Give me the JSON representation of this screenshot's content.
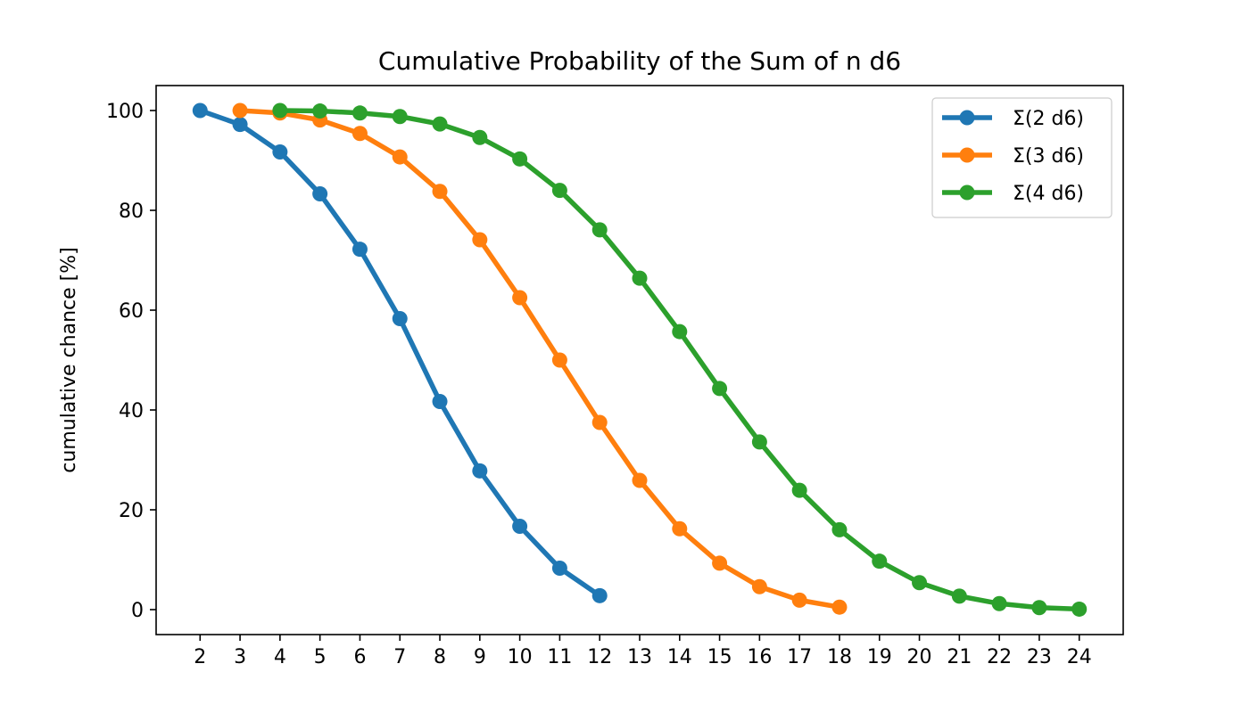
{
  "chart_data": {
    "type": "line",
    "title": "Cumulative Probability of the Sum of n d6",
    "xlabel": "",
    "ylabel": "cumulative chance [%]",
    "xlim": [
      0.9,
      25.1
    ],
    "ylim": [
      -5,
      105
    ],
    "x_ticks": [
      2,
      3,
      4,
      5,
      6,
      7,
      8,
      9,
      10,
      11,
      12,
      13,
      14,
      15,
      16,
      17,
      18,
      19,
      20,
      21,
      22,
      23,
      24
    ],
    "y_ticks": [
      0,
      20,
      40,
      60,
      80,
      100
    ],
    "grid": false,
    "legend_position": "top-right",
    "series": [
      {
        "name": "Σ(2 d6)",
        "color": "#1f77b4",
        "x": [
          2,
          3,
          4,
          5,
          6,
          7,
          8,
          9,
          10,
          11,
          12
        ],
        "y": [
          100,
          97.2,
          91.7,
          83.3,
          72.2,
          58.3,
          41.7,
          27.8,
          16.7,
          8.3,
          2.8
        ]
      },
      {
        "name": "Σ(3 d6)",
        "color": "#ff7f0e",
        "x": [
          3,
          4,
          5,
          6,
          7,
          8,
          9,
          10,
          11,
          12,
          13,
          14,
          15,
          16,
          17,
          18
        ],
        "y": [
          100,
          99.5,
          98.1,
          95.4,
          90.7,
          83.8,
          74.1,
          62.5,
          50.0,
          37.5,
          25.9,
          16.2,
          9.3,
          4.6,
          1.9,
          0.5
        ]
      },
      {
        "name": "Σ(4 d6)",
        "color": "#2ca02c",
        "x": [
          4,
          5,
          6,
          7,
          8,
          9,
          10,
          11,
          12,
          13,
          14,
          15,
          16,
          17,
          18,
          19,
          20,
          21,
          22,
          23,
          24
        ],
        "y": [
          100,
          99.9,
          99.5,
          98.8,
          97.3,
          94.6,
          90.3,
          84.0,
          76.1,
          66.4,
          55.7,
          44.3,
          33.6,
          23.9,
          16.0,
          9.7,
          5.4,
          2.7,
          1.2,
          0.4,
          0.1
        ]
      }
    ]
  }
}
